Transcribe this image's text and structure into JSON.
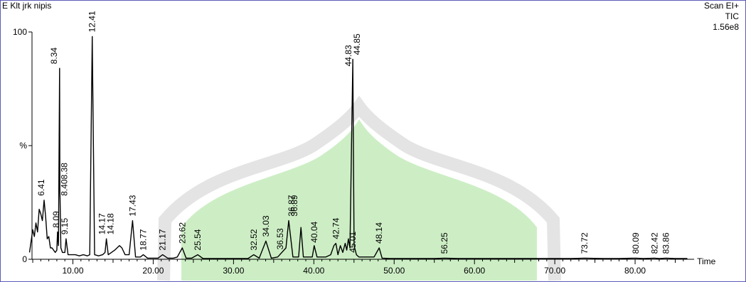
{
  "sample_name": "E Klt jrk nipis",
  "scan_mode": "Scan  EI+",
  "trace": "TIC",
  "intensity": "1.56e8",
  "chart_data": {
    "type": "line",
    "title": "",
    "xlabel": "Time",
    "ylabel": "%",
    "xlim": [
      4.5,
      87
    ],
    "ylim": [
      0,
      100
    ],
    "x_ticks": [
      "10.00",
      "20.00",
      "30.00",
      "40.00",
      "50.00",
      "60.00",
      "70.00",
      "80.00"
    ],
    "y_tick_labels": [
      "0",
      "%",
      "100"
    ],
    "series": [
      {
        "x": [
          4.6,
          4.8,
          5.0,
          5.2,
          5.4,
          5.6,
          5.8,
          6.0,
          6.2,
          6.41,
          6.6,
          6.8,
          7.0,
          7.2,
          7.4,
          7.6,
          7.8,
          8.0,
          8.09,
          8.2,
          8.34,
          8.38,
          8.408,
          8.5,
          8.7,
          9.0,
          9.15,
          9.4,
          9.8,
          10.3,
          10.8,
          11.3,
          11.8,
          12.1,
          12.41,
          12.7,
          13.2,
          13.7,
          14.0,
          14.17,
          14.4,
          14.8,
          15.2,
          15.5,
          15.8,
          16.1,
          16.5,
          17.0,
          17.43,
          17.8,
          18.4,
          18.77,
          19.3,
          20.0,
          20.6,
          21.17,
          21.8,
          22.5,
          23.0,
          23.62,
          24.1,
          24.8,
          25.54,
          26.2,
          27.0,
          28.0,
          29.0,
          30.0,
          31.0,
          31.8,
          32.52,
          33.2,
          34.03,
          34.7,
          35.5,
          36.53,
          36.87,
          37.4,
          38.1,
          38.4,
          38.7,
          39.3,
          39.8,
          40.04,
          40.4,
          41.0,
          41.5,
          42.1,
          42.5,
          42.74,
          43.0,
          43.3,
          43.6,
          43.9,
          44.1,
          44.3,
          44.5,
          44.83,
          44.85,
          45.01,
          45.3,
          45.6,
          46.0,
          46.5,
          47.0,
          47.5,
          48.14,
          48.5,
          49.5,
          51.0,
          53.0,
          55.0,
          56.25,
          58.0,
          60.0,
          63.0,
          66.0,
          69.0,
          72.0,
          73.72,
          76.0,
          78.0,
          80.09,
          81.0,
          82.42,
          83.0,
          83.86,
          85.0,
          86.5
        ],
        "y": [
          3,
          8,
          13,
          10,
          16,
          12,
          22,
          20,
          17,
          26,
          19,
          9,
          10,
          5,
          5,
          4,
          3,
          4,
          12,
          6,
          84,
          30,
          26,
          5,
          3,
          3,
          9,
          2,
          2,
          2,
          1.5,
          2,
          1.5,
          2,
          98,
          2,
          1.5,
          2,
          3,
          9,
          2,
          3,
          4,
          5,
          6,
          5,
          2,
          2,
          17,
          1,
          1,
          2,
          0.5,
          0.5,
          0.5,
          2,
          0.5,
          0.5,
          1,
          5,
          0.5,
          0.5,
          2,
          0.3,
          0.3,
          0.3,
          0.3,
          0.3,
          0.3,
          0.3,
          2,
          0.5,
          8,
          0.5,
          1,
          5,
          17,
          1,
          1,
          14,
          1,
          1,
          1,
          6,
          1,
          1,
          1,
          2,
          6,
          7,
          2,
          6,
          3,
          7,
          4,
          9,
          5,
          83,
          88,
          6,
          2,
          1,
          1,
          1,
          1,
          1,
          5,
          0.5,
          0.3,
          0.3,
          0.3,
          0.3,
          0.5,
          0.3,
          0.3,
          0.3,
          0.3,
          0.3,
          0.3,
          0.5,
          0.3,
          0.3,
          0.5,
          0.3,
          0.5,
          0.3,
          0.5,
          0.3,
          0.3
        ]
      }
    ],
    "peak_labels": [
      {
        "x": 6.41,
        "label": "6.41"
      },
      {
        "x": 8.09,
        "label": "8.09"
      },
      {
        "x": 8.34,
        "label": "8.34"
      },
      {
        "x": 8.408,
        "label": "8.408.38"
      },
      {
        "x": 9.15,
        "label": "9.15"
      },
      {
        "x": 12.41,
        "label": "12.41"
      },
      {
        "x": 14.17,
        "label": "14.17"
      },
      {
        "x": 14.18,
        "label": "14.18"
      },
      {
        "x": 17.43,
        "label": "17.43"
      },
      {
        "x": 18.77,
        "label": "18.77"
      },
      {
        "x": 21.17,
        "label": "21.17"
      },
      {
        "x": 23.62,
        "label": "23.62"
      },
      {
        "x": 25.54,
        "label": "25.54"
      },
      {
        "x": 32.52,
        "label": "32.52"
      },
      {
        "x": 34.03,
        "label": "34.03"
      },
      {
        "x": 36.53,
        "label": "36.53"
      },
      {
        "x": 36.87,
        "label": "36.87"
      },
      {
        "x": 36.89,
        "label": "36.89"
      },
      {
        "x": 40.04,
        "label": "40.04"
      },
      {
        "x": 42.74,
        "label": "42.74"
      },
      {
        "x": 44.83,
        "label": "44.83"
      },
      {
        "x": 44.85,
        "label": "44.85"
      },
      {
        "x": 45.01,
        "label": "45.01"
      },
      {
        "x": 48.14,
        "label": "48.14"
      },
      {
        "x": 56.25,
        "label": "56.25"
      },
      {
        "x": 73.72,
        "label": "73.72"
      },
      {
        "x": 80.09,
        "label": "80.09"
      },
      {
        "x": 82.42,
        "label": "82.42"
      },
      {
        "x": 83.86,
        "label": "83.86"
      }
    ]
  },
  "colors": {
    "frame": "#5a5ab8",
    "trace": "#000000",
    "watermark_fill": "#cdeec5",
    "watermark_outline": "#d9d9d9"
  }
}
